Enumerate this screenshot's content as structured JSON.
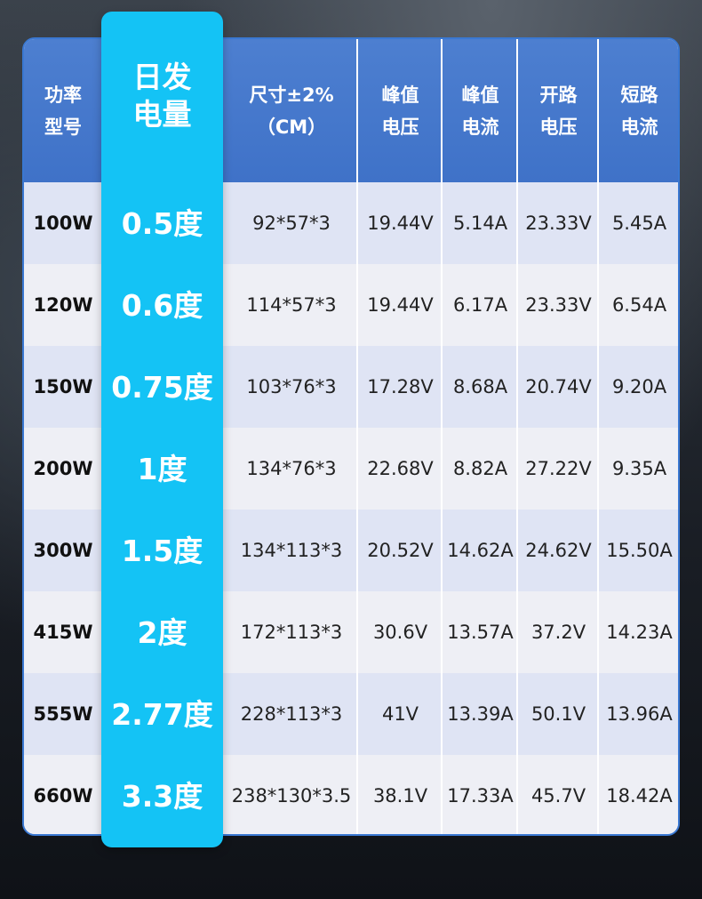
{
  "headers": {
    "power_model": [
      "功率",
      "型号"
    ],
    "daily_energy": [
      "日发",
      "电量"
    ],
    "size": [
      "尺寸±2%",
      "（CM）"
    ],
    "peak_voltage": [
      "峰值",
      "电压"
    ],
    "peak_current": [
      "峰值",
      "电流"
    ],
    "open_circuit_voltage": [
      "开路",
      "电压"
    ],
    "short_circuit_current": [
      "短路",
      "电流"
    ]
  },
  "rows": [
    {
      "power": "100W",
      "energy": "0.5度",
      "size": "92*57*3",
      "vmp": "19.44V",
      "imp": "5.14A",
      "voc": "23.33V",
      "isc": "5.45A"
    },
    {
      "power": "120W",
      "energy": "0.6度",
      "size": "114*57*3",
      "vmp": "19.44V",
      "imp": "6.17A",
      "voc": "23.33V",
      "isc": "6.54A"
    },
    {
      "power": "150W",
      "energy": "0.75度",
      "size": "103*76*3",
      "vmp": "17.28V",
      "imp": "8.68A",
      "voc": "20.74V",
      "isc": "9.20A"
    },
    {
      "power": "200W",
      "energy": "1度",
      "size": "134*76*3",
      "vmp": "22.68V",
      "imp": "8.82A",
      "voc": "27.22V",
      "isc": "9.35A"
    },
    {
      "power": "300W",
      "energy": "1.5度",
      "size": "134*113*3",
      "vmp": "20.52V",
      "imp": "14.62A",
      "voc": "24.62V",
      "isc": "15.50A"
    },
    {
      "power": "415W",
      "energy": "2度",
      "size": "172*113*3",
      "vmp": "30.6V",
      "imp": "13.57A",
      "voc": "37.2V",
      "isc": "14.23A"
    },
    {
      "power": "555W",
      "energy": "2.77度",
      "size": "228*113*3",
      "vmp": "41V",
      "imp": "13.39A",
      "voc": "50.1V",
      "isc": "13.96A"
    },
    {
      "power": "660W",
      "energy": "3.3度",
      "size": "238*130*3.5",
      "vmp": "38.1V",
      "imp": "17.33A",
      "voc": "45.7V",
      "isc": "18.42A"
    }
  ],
  "colors": {
    "header_blue": "#4077c9",
    "highlight_cyan": "#14c3f5",
    "border_blue": "#3a78d2",
    "row_light": "#eeeff5",
    "row_tint": "#dfe4f4"
  }
}
